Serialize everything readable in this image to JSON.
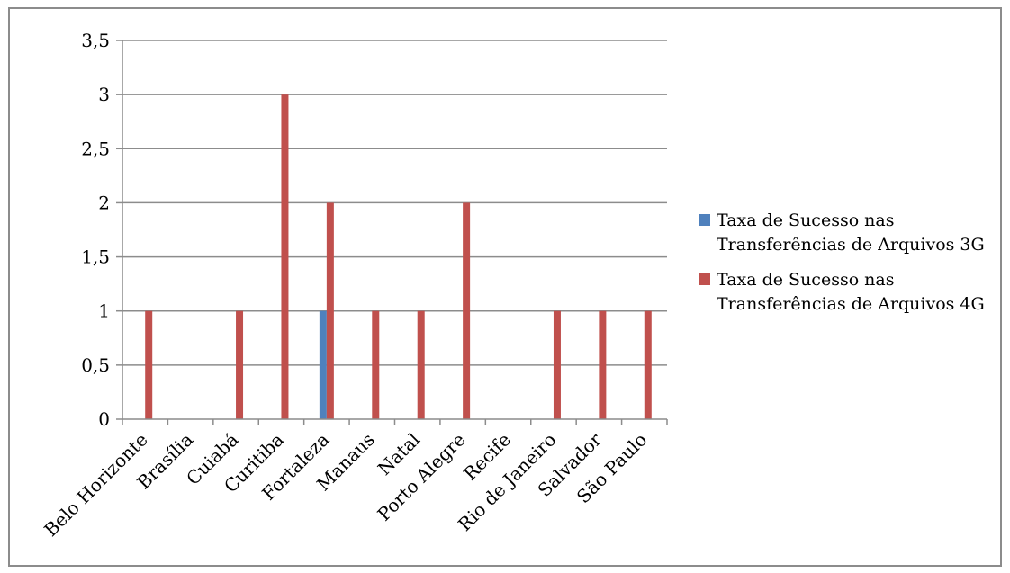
{
  "chart_data": {
    "type": "bar",
    "categories": [
      "Belo Horizonte",
      "Brasília",
      "Cuiabá",
      "Curitiba",
      "Fortaleza",
      "Manaus",
      "Natal",
      "Porto Alegre",
      "Recife",
      "Rio de Janeiro",
      "Salvador",
      "São Paulo"
    ],
    "series": [
      {
        "name": "Taxa de Sucesso nas Transferências de Arquivos 3G",
        "color": "#4f81bd",
        "values": [
          0,
          0,
          0,
          0,
          1,
          0,
          0,
          0,
          0,
          0,
          0,
          0
        ]
      },
      {
        "name": "Taxa de Sucesso nas Transferências de Arquivos 4G",
        "color": "#c0504d",
        "values": [
          1,
          0,
          1,
          3,
          2,
          1,
          1,
          2,
          0,
          1,
          1,
          1
        ]
      }
    ],
    "yticks": [
      "0",
      "0,5",
      "1",
      "1,5",
      "2",
      "2,5",
      "3",
      "3,5"
    ],
    "ylim": [
      0,
      3.5
    ],
    "grid": true,
    "legend_position": "right",
    "title": "",
    "xlabel": "",
    "ylabel": ""
  }
}
